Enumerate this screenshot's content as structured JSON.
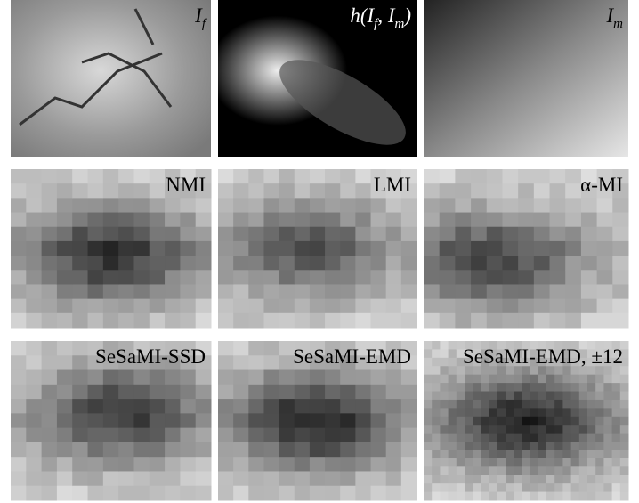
{
  "panels": [
    {
      "label": [
        {
          "text": "I"
        },
        {
          "sub": "f"
        }
      ]
    },
    {
      "label": [
        {
          "text": "h(I"
        },
        {
          "sub": "f"
        },
        {
          "text": ", I"
        },
        {
          "sub": "m"
        },
        {
          "text": ")"
        }
      ]
    },
    {
      "label": [
        {
          "text": "I"
        },
        {
          "sub": "m"
        }
      ]
    },
    {
      "label": [
        {
          "text": "NMI"
        }
      ]
    },
    {
      "label": [
        {
          "text": "LMI"
        }
      ]
    },
    {
      "label": [
        {
          "text": "α-MI"
        }
      ]
    },
    {
      "label": [
        {
          "text": "SeSaMI-SSD"
        }
      ]
    },
    {
      "label": [
        {
          "text": "SeSaMI-EMD"
        }
      ]
    },
    {
      "label": [
        {
          "text": "SeSaMI-EMD, ±12"
        }
      ]
    }
  ]
}
